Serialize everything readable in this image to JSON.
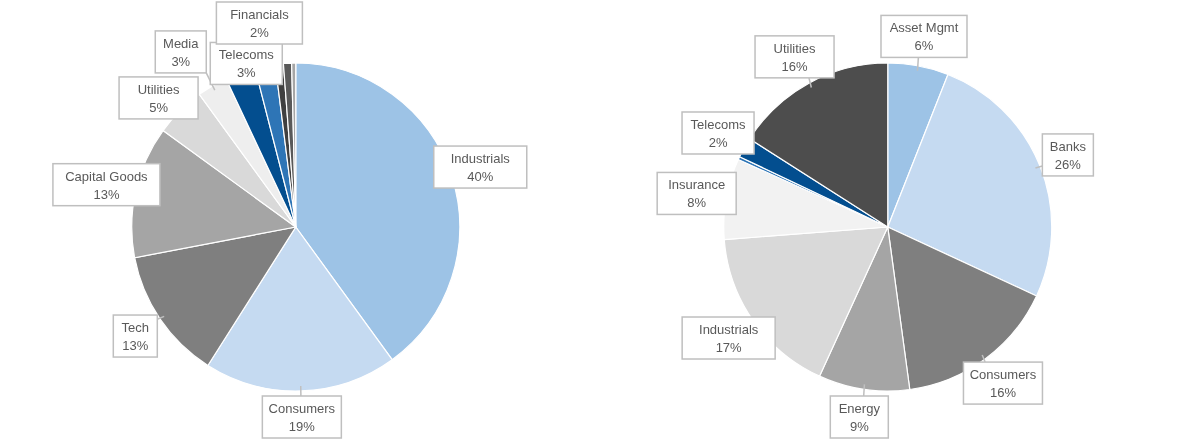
{
  "chart_data": [
    {
      "type": "pie",
      "categories": [
        "Industrials",
        "Consumers",
        "Tech",
        "Capital Goods",
        "Utilities",
        "Media",
        "Telecoms",
        "Financials",
        null,
        null,
        null
      ],
      "values": [
        40,
        19,
        13,
        13,
        5,
        3,
        3,
        2,
        0.8,
        0.8,
        0.4
      ],
      "value_labels": [
        "40%",
        "19%",
        "13%",
        "13%",
        "5%",
        "3%",
        "3%",
        "2%",
        null,
        null,
        null
      ],
      "colors": [
        "#9dc3e6",
        "#c5daf1",
        "#7f7f7f",
        "#a5a5a5",
        "#d9d9d9",
        "#eeeeee",
        "#034e8f",
        "#2e75b6",
        "#404040",
        "#595959",
        "#a6a6a6"
      ]
    },
    {
      "type": "pie",
      "categories": [
        "Asset Mgmt",
        "Banks",
        "Consumers",
        "Energy",
        "Industrials",
        "Insurance",
        null,
        "Telecoms",
        "Utilities"
      ],
      "values": [
        6,
        26,
        16,
        9,
        17,
        8,
        0.3,
        2,
        16
      ],
      "value_labels": [
        "6%",
        "26%",
        "16%",
        "9%",
        "17%",
        "8%",
        null,
        "2%",
        "16%"
      ],
      "colors": [
        "#9dc3e6",
        "#c5daf1",
        "#7f7f7f",
        "#a5a5a5",
        "#d9d9d9",
        "#f2f2f2",
        "#2e75b6",
        "#034e8f",
        "#4d4d4d"
      ]
    }
  ]
}
